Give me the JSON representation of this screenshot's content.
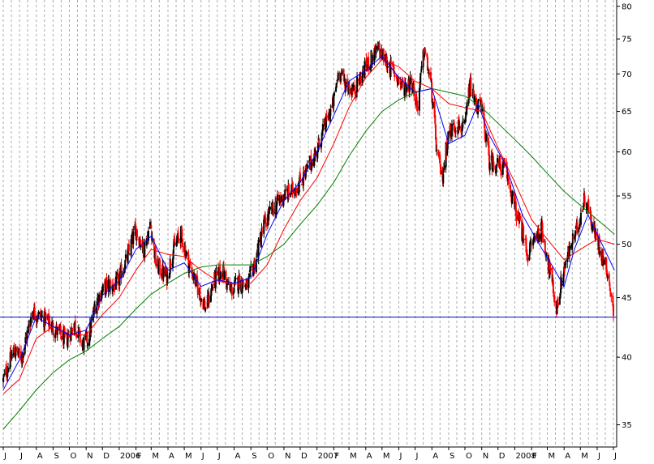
{
  "chart_data": {
    "type": "candlestick",
    "title": "",
    "xlabel": "",
    "ylabel": "",
    "y_scale": "log",
    "ylim": [
      33.5,
      81
    ],
    "y_ticks": [
      35,
      40,
      45,
      50,
      55,
      60,
      65,
      70,
      75,
      80
    ],
    "x_ticks": [
      {
        "label": "J",
        "date": "2005-06"
      },
      {
        "label": "J",
        "date": "2005-07"
      },
      {
        "label": "A",
        "date": "2005-08"
      },
      {
        "label": "S",
        "date": "2005-09"
      },
      {
        "label": "O",
        "date": "2005-10"
      },
      {
        "label": "N",
        "date": "2005-11"
      },
      {
        "label": "D",
        "date": "2005-12"
      },
      {
        "label": "2006",
        "date": "2006-01"
      },
      {
        "label": "F",
        "date": "2006-02"
      },
      {
        "label": "M",
        "date": "2006-03"
      },
      {
        "label": "A",
        "date": "2006-04"
      },
      {
        "label": "M",
        "date": "2006-05"
      },
      {
        "label": "J",
        "date": "2006-06"
      },
      {
        "label": "J",
        "date": "2006-07"
      },
      {
        "label": "A",
        "date": "2006-08"
      },
      {
        "label": "S",
        "date": "2006-09"
      },
      {
        "label": "O",
        "date": "2006-10"
      },
      {
        "label": "N",
        "date": "2006-11"
      },
      {
        "label": "D",
        "date": "2006-12"
      },
      {
        "label": "2007",
        "date": "2007-01"
      },
      {
        "label": "F",
        "date": "2007-02"
      },
      {
        "label": "M",
        "date": "2007-03"
      },
      {
        "label": "A",
        "date": "2007-04"
      },
      {
        "label": "M",
        "date": "2007-05"
      },
      {
        "label": "J",
        "date": "2007-06"
      },
      {
        "label": "J",
        "date": "2007-07"
      },
      {
        "label": "A",
        "date": "2007-08"
      },
      {
        "label": "S",
        "date": "2007-09"
      },
      {
        "label": "O",
        "date": "2007-10"
      },
      {
        "label": "N",
        "date": "2007-11"
      },
      {
        "label": "D",
        "date": "2007-12"
      },
      {
        "label": "2008",
        "date": "2008-01"
      },
      {
        "label": "F",
        "date": "2008-02"
      },
      {
        "label": "M",
        "date": "2008-03"
      },
      {
        "label": "A",
        "date": "2008-04"
      },
      {
        "label": "M",
        "date": "2008-05"
      },
      {
        "label": "J",
        "date": "2008-06"
      },
      {
        "label": "J",
        "date": "2008-07"
      }
    ],
    "grid": "vertical dashed",
    "horizontal_line": {
      "value": 43.3,
      "color": "#0000cc"
    },
    "price_path": [
      [
        "2005-06-01",
        38.2
      ],
      [
        "2005-06-20",
        40.5
      ],
      [
        "2005-07-05",
        40.0
      ],
      [
        "2005-07-25",
        43.8
      ],
      [
        "2005-08-10",
        43.3
      ],
      [
        "2005-08-25",
        42.8
      ],
      [
        "2005-09-10",
        42.0
      ],
      [
        "2005-09-25",
        41.3
      ],
      [
        "2005-10-10",
        42.8
      ],
      [
        "2005-10-25",
        41.0
      ],
      [
        "2005-11-05",
        41.5
      ],
      [
        "2005-11-20",
        44.8
      ],
      [
        "2005-12-10",
        46.2
      ],
      [
        "2005-12-25",
        46.0
      ],
      [
        "2006-01-15",
        48.5
      ],
      [
        "2006-01-31",
        51.5
      ],
      [
        "2006-02-15",
        49.5
      ],
      [
        "2006-02-28",
        52.0
      ],
      [
        "2006-03-10",
        48.0
      ],
      [
        "2006-03-31",
        46.8
      ],
      [
        "2006-04-10",
        49.5
      ],
      [
        "2006-04-25",
        51.0
      ],
      [
        "2006-05-10",
        48.0
      ],
      [
        "2006-05-25",
        46.0
      ],
      [
        "2006-06-10",
        44.0
      ],
      [
        "2006-06-25",
        46.5
      ],
      [
        "2006-07-10",
        47.5
      ],
      [
        "2006-07-25",
        45.5
      ],
      [
        "2006-08-10",
        46.5
      ],
      [
        "2006-08-25",
        46.0
      ],
      [
        "2006-09-10",
        48.5
      ],
      [
        "2006-09-25",
        52.0
      ],
      [
        "2006-10-10",
        53.5
      ],
      [
        "2006-10-31",
        55.0
      ],
      [
        "2006-11-15",
        55.5
      ],
      [
        "2006-11-30",
        56.5
      ],
      [
        "2006-12-15",
        58.0
      ],
      [
        "2006-12-31",
        60.0
      ],
      [
        "2007-01-15",
        63.0
      ],
      [
        "2007-01-31",
        66.0
      ],
      [
        "2007-02-10",
        70.5
      ],
      [
        "2007-02-20",
        69.0
      ],
      [
        "2007-03-10",
        67.5
      ],
      [
        "2007-03-25",
        70.0
      ],
      [
        "2007-04-10",
        72.0
      ],
      [
        "2007-04-25",
        73.5
      ],
      [
        "2007-05-10",
        71.5
      ],
      [
        "2007-05-25",
        70.0
      ],
      [
        "2007-06-10",
        68.0
      ],
      [
        "2007-06-25",
        69.0
      ],
      [
        "2007-07-05",
        65.5
      ],
      [
        "2007-07-18",
        73.5
      ],
      [
        "2007-07-31",
        68.0
      ],
      [
        "2007-08-10",
        60.0
      ],
      [
        "2007-08-20",
        57.0
      ],
      [
        "2007-08-31",
        62.0
      ],
      [
        "2007-09-15",
        63.5
      ],
      [
        "2007-09-30",
        62.5
      ],
      [
        "2007-10-10",
        68.5
      ],
      [
        "2007-10-20",
        66.0
      ],
      [
        "2007-10-31",
        65.5
      ],
      [
        "2007-11-15",
        59.0
      ],
      [
        "2007-11-30",
        58.5
      ],
      [
        "2007-12-15",
        58.0
      ],
      [
        "2007-12-31",
        54.0
      ],
      [
        "2008-01-15",
        51.0
      ],
      [
        "2008-01-25",
        49.0
      ],
      [
        "2008-02-05",
        50.5
      ],
      [
        "2008-02-20",
        51.5
      ],
      [
        "2008-03-05",
        47.5
      ],
      [
        "2008-03-18",
        44.0
      ],
      [
        "2008-03-31",
        47.5
      ],
      [
        "2008-04-15",
        50.0
      ],
      [
        "2008-04-25",
        51.5
      ],
      [
        "2008-05-10",
        55.0
      ],
      [
        "2008-05-25",
        51.5
      ],
      [
        "2008-06-10",
        49.0
      ],
      [
        "2008-06-20",
        47.5
      ],
      [
        "2008-06-30",
        44.0
      ],
      [
        "2008-07-03",
        42.8
      ]
    ],
    "ma_fast": [
      [
        "2005-06-01",
        37.5
      ],
      [
        "2005-07-01",
        39.8
      ],
      [
        "2005-08-01",
        43.3
      ],
      [
        "2005-09-01",
        42.5
      ],
      [
        "2005-10-01",
        41.8
      ],
      [
        "2005-11-01",
        42.2
      ],
      [
        "2005-12-01",
        45.2
      ],
      [
        "2006-01-01",
        46.5
      ],
      [
        "2006-02-01",
        49.5
      ],
      [
        "2006-03-01",
        50.8
      ],
      [
        "2006-04-01",
        47.5
      ],
      [
        "2006-05-01",
        48.2
      ],
      [
        "2006-06-01",
        46.0
      ],
      [
        "2006-07-01",
        46.6
      ],
      [
        "2006-08-01",
        46.3
      ],
      [
        "2006-09-01",
        46.8
      ],
      [
        "2006-10-01",
        51.0
      ],
      [
        "2006-11-01",
        54.5
      ],
      [
        "2006-12-01",
        56.5
      ],
      [
        "2007-01-01",
        60.0
      ],
      [
        "2007-02-01",
        64.5
      ],
      [
        "2007-03-01",
        69.0
      ],
      [
        "2007-04-01",
        70.5
      ],
      [
        "2007-05-01",
        72.5
      ],
      [
        "2007-06-01",
        69.5
      ],
      [
        "2007-07-01",
        67.5
      ],
      [
        "2007-08-01",
        68.0
      ],
      [
        "2007-09-01",
        61.0
      ],
      [
        "2007-10-01",
        62.0
      ],
      [
        "2007-10-25",
        66.0
      ],
      [
        "2007-11-15",
        62.0
      ],
      [
        "2007-12-15",
        58.5
      ],
      [
        "2008-01-15",
        53.0
      ],
      [
        "2008-02-15",
        50.0
      ],
      [
        "2008-03-15",
        47.5
      ],
      [
        "2008-04-01",
        46.0
      ],
      [
        "2008-04-20",
        49.5
      ],
      [
        "2008-05-15",
        53.0
      ],
      [
        "2008-06-10",
        50.0
      ],
      [
        "2008-07-03",
        47.5
      ]
    ],
    "ma_medium": [
      [
        "2005-06-01",
        37.2
      ],
      [
        "2005-07-01",
        38.3
      ],
      [
        "2005-08-01",
        41.5
      ],
      [
        "2005-09-01",
        42.5
      ],
      [
        "2005-10-01",
        41.8
      ],
      [
        "2005-11-01",
        41.8
      ],
      [
        "2005-12-01",
        43.5
      ],
      [
        "2006-01-01",
        45.0
      ],
      [
        "2006-02-01",
        47.5
      ],
      [
        "2006-03-01",
        49.5
      ],
      [
        "2006-04-01",
        49.0
      ],
      [
        "2006-05-01",
        48.8
      ],
      [
        "2006-06-01",
        47.5
      ],
      [
        "2006-07-01",
        46.5
      ],
      [
        "2006-08-01",
        46.2
      ],
      [
        "2006-09-01",
        46.3
      ],
      [
        "2006-10-01",
        48.0
      ],
      [
        "2006-11-01",
        51.5
      ],
      [
        "2006-12-01",
        54.5
      ],
      [
        "2007-01-01",
        57.0
      ],
      [
        "2007-02-01",
        61.0
      ],
      [
        "2007-03-01",
        65.5
      ],
      [
        "2007-04-01",
        69.5
      ],
      [
        "2007-05-01",
        72.0
      ],
      [
        "2007-06-01",
        71.0
      ],
      [
        "2007-07-01",
        69.0
      ],
      [
        "2007-08-01",
        68.0
      ],
      [
        "2007-09-01",
        66.0
      ],
      [
        "2007-10-01",
        65.5
      ],
      [
        "2007-11-01",
        65.0
      ],
      [
        "2007-12-01",
        60.5
      ],
      [
        "2008-01-01",
        56.5
      ],
      [
        "2008-02-01",
        52.5
      ],
      [
        "2008-03-01",
        50.5
      ],
      [
        "2008-04-01",
        48.5
      ],
      [
        "2008-05-01",
        49.5
      ],
      [
        "2008-06-01",
        50.5
      ],
      [
        "2008-07-03",
        50.0
      ]
    ],
    "ma_slow": [
      [
        "2005-06-01",
        34.7
      ],
      [
        "2005-07-01",
        36.0
      ],
      [
        "2005-08-01",
        37.5
      ],
      [
        "2005-09-01",
        38.8
      ],
      [
        "2005-10-01",
        39.8
      ],
      [
        "2005-11-01",
        40.5
      ],
      [
        "2005-12-01",
        41.5
      ],
      [
        "2006-01-01",
        42.5
      ],
      [
        "2006-02-01",
        44.0
      ],
      [
        "2006-03-01",
        45.3
      ],
      [
        "2006-04-01",
        46.3
      ],
      [
        "2006-05-01",
        47.2
      ],
      [
        "2006-06-01",
        47.8
      ],
      [
        "2006-07-01",
        48.0
      ],
      [
        "2006-08-01",
        48.0
      ],
      [
        "2006-09-01",
        48.0
      ],
      [
        "2006-10-01",
        48.8
      ],
      [
        "2006-11-01",
        50.0
      ],
      [
        "2006-12-01",
        52.0
      ],
      [
        "2007-01-01",
        54.0
      ],
      [
        "2007-02-01",
        56.5
      ],
      [
        "2007-03-01",
        59.5
      ],
      [
        "2007-04-01",
        62.5
      ],
      [
        "2007-05-01",
        65.0
      ],
      [
        "2007-06-01",
        66.5
      ],
      [
        "2007-07-01",
        67.5
      ],
      [
        "2007-08-01",
        68.0
      ],
      [
        "2007-09-01",
        67.5
      ],
      [
        "2007-10-01",
        67.0
      ],
      [
        "2007-11-01",
        65.5
      ],
      [
        "2007-12-01",
        63.5
      ],
      [
        "2008-01-01",
        61.5
      ],
      [
        "2008-02-01",
        59.5
      ],
      [
        "2008-03-01",
        57.5
      ],
      [
        "2008-04-01",
        55.5
      ],
      [
        "2008-05-01",
        54.0
      ],
      [
        "2008-06-01",
        52.5
      ],
      [
        "2008-07-03",
        51.0
      ]
    ],
    "colors": {
      "up_candle": "#000000",
      "down_candle": "#ff0000",
      "ma_fast": "#0000ff",
      "ma_medium": "#ff0000",
      "ma_slow": "#008000",
      "grid": "#aaaaaa",
      "axis": "#000000"
    }
  }
}
